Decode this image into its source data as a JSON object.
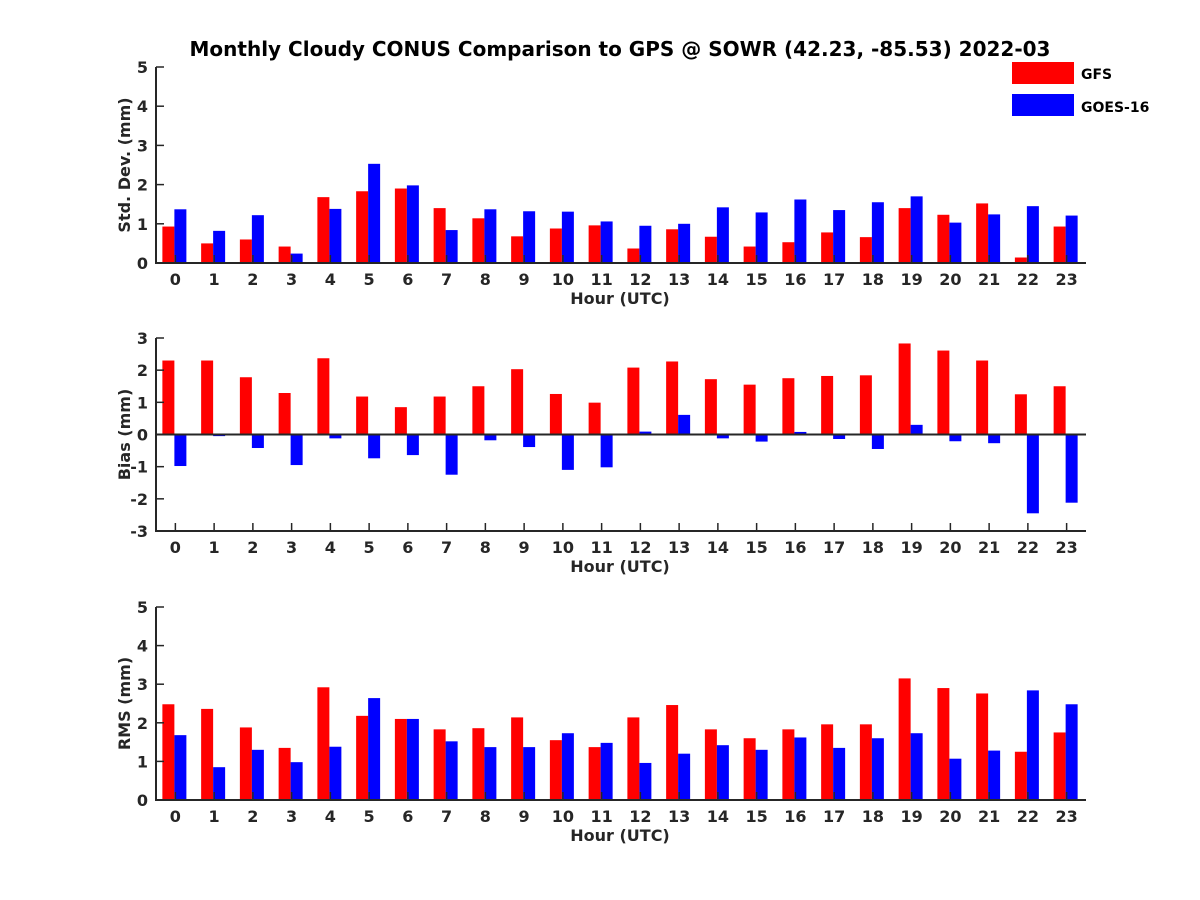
{
  "figure": {
    "title": "Monthly Cloudy CONUS Comparison to GPS @ SOWR (42.23, -85.53) 2022-03"
  },
  "legend": {
    "placement": "top-right",
    "items": [
      {
        "label": "GFS",
        "color": "#ff0000"
      },
      {
        "label": "GOES-16",
        "color": "#0000ff"
      }
    ]
  },
  "chart_data": [
    {
      "type": "bar",
      "ylabel": "Std. Dev. (mm)",
      "xlabel": "Hour (UTC)",
      "ylim": [
        0,
        5
      ],
      "yticks": [
        "0",
        "1",
        "2",
        "3",
        "4",
        "5"
      ],
      "categories": [
        "0",
        "1",
        "2",
        "3",
        "4",
        "5",
        "6",
        "7",
        "8",
        "9",
        "10",
        "11",
        "12",
        "13",
        "14",
        "15",
        "16",
        "17",
        "18",
        "19",
        "20",
        "21",
        "22",
        "23"
      ],
      "series": [
        {
          "name": "GFS",
          "color": "#ff0000",
          "values": [
            0.93,
            0.5,
            0.6,
            0.42,
            1.68,
            1.83,
            1.9,
            1.4,
            1.14,
            0.68,
            0.88,
            0.96,
            0.37,
            0.86,
            0.67,
            0.42,
            0.53,
            0.78,
            0.66,
            1.4,
            1.23,
            1.52,
            0.14,
            0.93
          ]
        },
        {
          "name": "GOES-16",
          "color": "#0000ff",
          "values": [
            1.37,
            0.82,
            1.22,
            0.24,
            1.38,
            2.53,
            1.98,
            0.84,
            1.37,
            1.32,
            1.31,
            1.06,
            0.95,
            1.0,
            1.42,
            1.29,
            1.62,
            1.35,
            1.55,
            1.7,
            1.03,
            1.24,
            1.45,
            1.21
          ]
        }
      ]
    },
    {
      "type": "bar",
      "ylabel": "Bias (mm)",
      "xlabel": "Hour (UTC)",
      "ylim": [
        -3,
        3
      ],
      "yticks": [
        "-3",
        "-2",
        "-1",
        "0",
        "1",
        "2",
        "3"
      ],
      "categories": [
        "0",
        "1",
        "2",
        "3",
        "4",
        "5",
        "6",
        "7",
        "8",
        "9",
        "10",
        "11",
        "12",
        "13",
        "14",
        "15",
        "16",
        "17",
        "18",
        "19",
        "20",
        "21",
        "22",
        "23"
      ],
      "series": [
        {
          "name": "GFS",
          "color": "#ff0000",
          "values": [
            2.3,
            2.3,
            1.78,
            1.29,
            2.37,
            1.18,
            0.85,
            1.18,
            1.5,
            2.03,
            1.26,
            0.99,
            2.08,
            2.27,
            1.72,
            1.55,
            1.75,
            1.82,
            1.84,
            2.83,
            2.61,
            2.3,
            1.25,
            1.5
          ]
        },
        {
          "name": "GOES-16",
          "color": "#0000ff",
          "values": [
            -0.98,
            -0.05,
            -0.42,
            -0.95,
            -0.12,
            -0.74,
            -0.64,
            -1.25,
            -0.18,
            -0.39,
            -1.1,
            -1.02,
            0.09,
            0.61,
            -0.12,
            -0.22,
            0.08,
            -0.14,
            -0.45,
            0.3,
            -0.21,
            -0.27,
            -2.45,
            -2.12
          ]
        }
      ]
    },
    {
      "type": "bar",
      "ylabel": "RMS (mm)",
      "xlabel": "Hour (UTC)",
      "ylim": [
        0,
        5
      ],
      "yticks": [
        "0",
        "1",
        "2",
        "3",
        "4",
        "5"
      ],
      "categories": [
        "0",
        "1",
        "2",
        "3",
        "4",
        "5",
        "6",
        "7",
        "8",
        "9",
        "10",
        "11",
        "12",
        "13",
        "14",
        "15",
        "16",
        "17",
        "18",
        "19",
        "20",
        "21",
        "22",
        "23"
      ],
      "series": [
        {
          "name": "GFS",
          "color": "#ff0000",
          "values": [
            2.48,
            2.36,
            1.88,
            1.35,
            2.92,
            2.18,
            2.1,
            1.83,
            1.86,
            2.14,
            1.55,
            1.37,
            2.14,
            2.46,
            1.83,
            1.6,
            1.83,
            1.96,
            1.96,
            3.15,
            2.9,
            2.76,
            1.25,
            1.75
          ]
        },
        {
          "name": "GOES-16",
          "color": "#0000ff",
          "values": [
            1.68,
            0.85,
            1.3,
            0.98,
            1.38,
            2.64,
            2.1,
            1.52,
            1.37,
            1.37,
            1.73,
            1.48,
            0.96,
            1.2,
            1.42,
            1.3,
            1.62,
            1.35,
            1.6,
            1.73,
            1.07,
            1.28,
            2.84,
            2.48
          ]
        }
      ]
    }
  ]
}
